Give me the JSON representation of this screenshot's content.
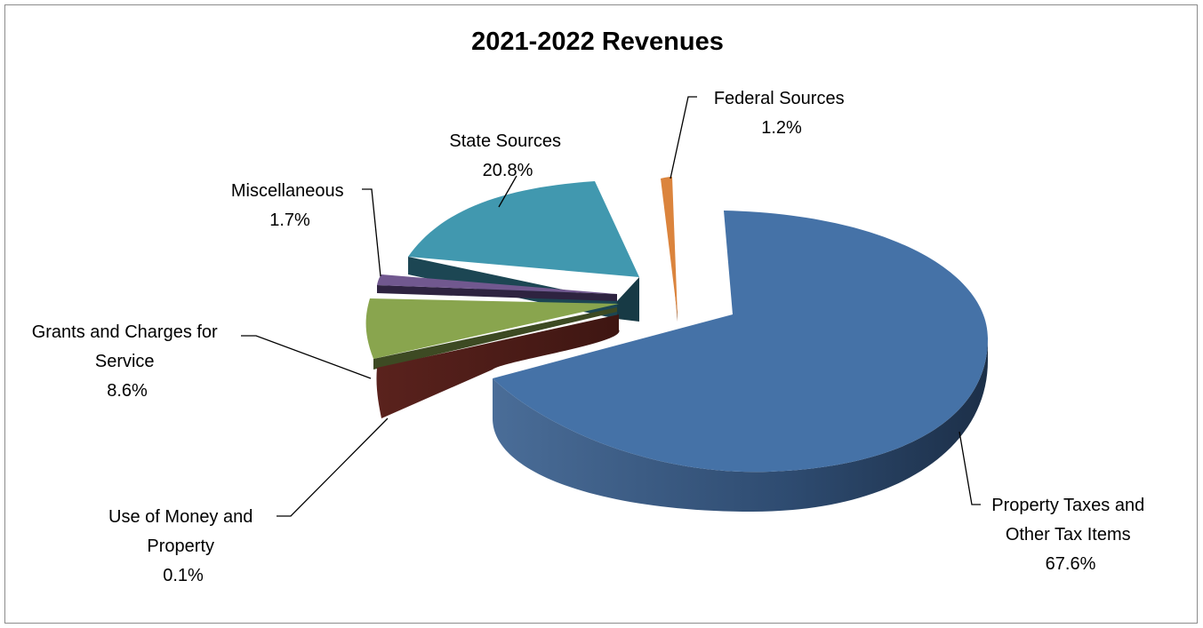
{
  "chart_data": {
    "type": "pie",
    "title": "2021-2022 Revenues",
    "legend": "none",
    "style": "3d-exploded",
    "slices": [
      {
        "label_lines": [
          "Property Taxes and",
          "Other Tax Items"
        ],
        "value": 67.6,
        "value_label": "67.6%",
        "color": "#4572A7"
      },
      {
        "label_lines": [
          "Use of Money and",
          "Property"
        ],
        "value": 0.1,
        "value_label": "0.1%",
        "color": "#6B2A24"
      },
      {
        "label_lines": [
          "Grants and Charges for",
          "Service"
        ],
        "value": 8.6,
        "value_label": "8.6%",
        "color": "#89A54E"
      },
      {
        "label_lines": [
          "Miscellaneous"
        ],
        "value": 1.7,
        "value_label": "1.7%",
        "color": "#71588F"
      },
      {
        "label_lines": [
          "State Sources"
        ],
        "value": 20.8,
        "value_label": "20.8%",
        "color": "#4198AF"
      },
      {
        "label_lines": [
          "Federal Sources"
        ],
        "value": 1.2,
        "value_label": "1.2%",
        "color": "#DB843D"
      }
    ]
  }
}
